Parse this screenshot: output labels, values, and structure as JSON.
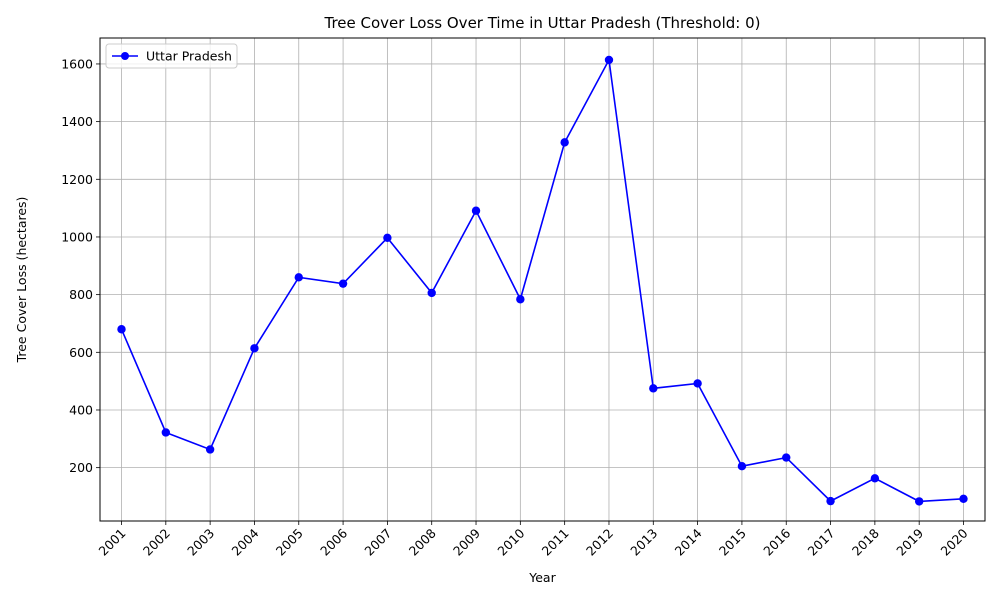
{
  "chart_data": {
    "type": "line",
    "title": "Tree Cover Loss Over Time in Uttar Pradesh (Threshold: 0)",
    "xlabel": "Year",
    "ylabel": "Tree Cover Loss (hectares)",
    "categories": [
      "2001",
      "2002",
      "2003",
      "2004",
      "2005",
      "2006",
      "2007",
      "2008",
      "2009",
      "2010",
      "2011",
      "2012",
      "2013",
      "2014",
      "2015",
      "2016",
      "2017",
      "2018",
      "2019",
      "2020"
    ],
    "series": [
      {
        "name": "Uttar Pradesh",
        "color": "#0000ff",
        "marker": "circle",
        "values": [
          680,
          322,
          263,
          614,
          860,
          838,
          997,
          806,
          1091,
          784,
          1328,
          1614,
          475,
          492,
          205,
          235,
          84,
          163,
          83,
          92
        ]
      }
    ],
    "ylim": [
      15,
      1690
    ],
    "yticks": [
      200,
      400,
      600,
      800,
      1000,
      1200,
      1400,
      1600
    ],
    "grid": true,
    "legend_position": "top-left",
    "x_tick_rotation": 45
  }
}
